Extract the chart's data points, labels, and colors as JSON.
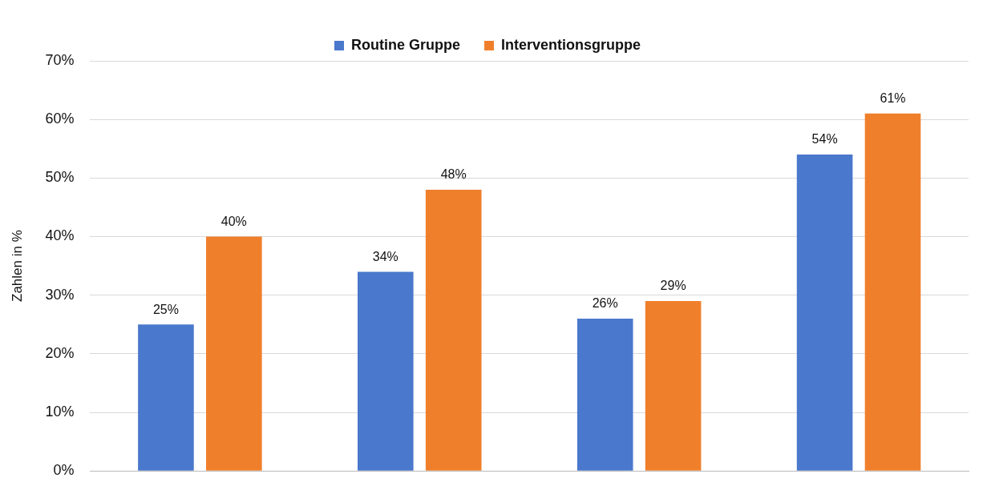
{
  "chart_data": {
    "type": "bar",
    "ylabel": "Zahlen in %",
    "categories": [
      null,
      null,
      null,
      null
    ],
    "series": [
      {
        "name": "Routine Gruppe",
        "color": "#4a78cc",
        "values": [
          25,
          34,
          26,
          54
        ],
        "value_labels": [
          "25%",
          "34%",
          "26%",
          "54%"
        ]
      },
      {
        "name": "Interventionsgruppe",
        "color": "#f07f2c",
        "values": [
          40,
          48,
          29,
          61
        ],
        "value_labels": [
          "40%",
          "48%",
          "29%",
          "61%"
        ]
      }
    ],
    "ylim": [
      0,
      70
    ],
    "yticks": [
      {
        "value": 0,
        "label": "0%"
      },
      {
        "value": 10,
        "label": "10%"
      },
      {
        "value": 20,
        "label": "20%"
      },
      {
        "value": 30,
        "label": "30%"
      },
      {
        "value": 40,
        "label": "40%"
      },
      {
        "value": 50,
        "label": "50%"
      },
      {
        "value": 60,
        "label": "60%"
      },
      {
        "value": 70,
        "label": "70%"
      }
    ],
    "grid": "y",
    "legend": "top",
    "tick_labels": "y"
  }
}
